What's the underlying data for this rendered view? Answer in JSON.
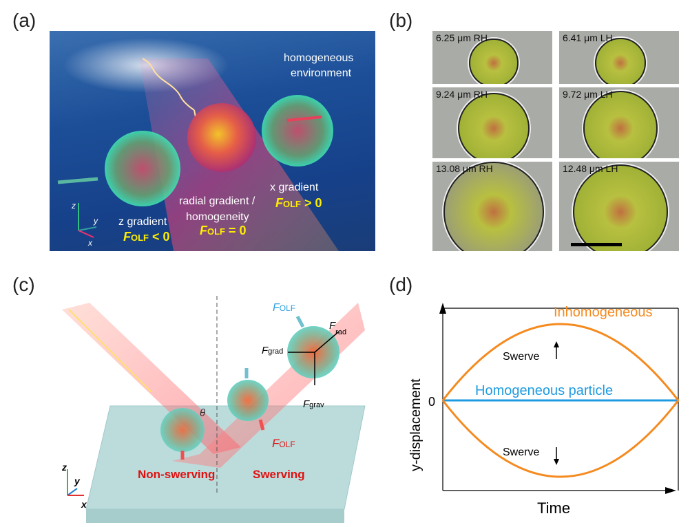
{
  "panel_labels": {
    "a": "(a)",
    "b": "(b)",
    "c": "(c)",
    "d": "(d)"
  },
  "panel_a": {
    "env_line1": "homogeneous",
    "env_line2": "environment",
    "z_grad": "z gradient",
    "z_force": "F",
    "z_sub": "OLF",
    "z_rel": " < 0",
    "radial_line1": "radial gradient /",
    "radial_line2": "homogeneity",
    "r_force": "F",
    "r_sub": "OLF",
    "r_rel": " = 0",
    "x_grad": "x gradient",
    "x_force": "F",
    "x_sub": "OLF",
    "x_rel": " > 0",
    "axes": {
      "z": "z",
      "y": "y",
      "x": "x"
    }
  },
  "panel_b": {
    "cells": [
      {
        "label": "6.25 μm RH",
        "size": 6.25
      },
      {
        "label": "6.41 μm LH",
        "size": 6.41
      },
      {
        "label": "9.24 μm RH",
        "size": 9.24
      },
      {
        "label": "9.72 μm LH",
        "size": 9.72
      },
      {
        "label": "13.08 μm RH",
        "size": 13.08
      },
      {
        "label": "12.48 μm LH",
        "size": 12.48
      }
    ]
  },
  "panel_c": {
    "theta": "θ",
    "f_olf": "F",
    "olf": "OLF",
    "f_grad": "F",
    "grad": "grad",
    "f_grav": "F",
    "grav": "grav",
    "f_rad": "F",
    "rad": "rad",
    "non_swerving": "Non-swerving",
    "swerving": "Swerving",
    "axes": {
      "z": "z",
      "y": "y",
      "x": "x"
    }
  },
  "panel_d": {
    "ylabel": "y-displacement",
    "xlabel": "Time",
    "zero": "0",
    "inhomogeneous": "Inhomogeneous",
    "homogeneous": "Homogeneous particle",
    "swerve_up": "Swerve",
    "swerve_down": "Swerve",
    "colors": {
      "inhomogeneous": "#f58a1f",
      "homogeneous": "#1e9be0"
    }
  }
}
